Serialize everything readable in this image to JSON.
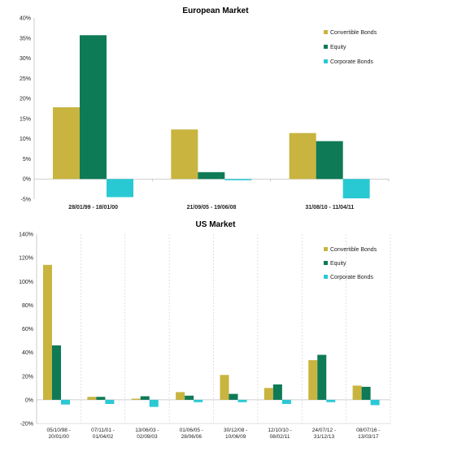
{
  "colors": {
    "convertible": "#C8B43F",
    "equity": "#0E7A56",
    "corporate": "#29C9D4",
    "grid": "#D9D9D9",
    "axis": "#BFBFBF"
  },
  "chart_data": [
    {
      "type": "bar",
      "title": "European Market",
      "categories": [
        "28/01/99 - 18/01/00",
        "21/09/05 - 19/06/08",
        "31/08/10 - 11/04/11"
      ],
      "series": [
        {
          "name": "Convertible Bonds",
          "values": [
            17.8,
            12.3,
            11.4
          ]
        },
        {
          "name": "Equity",
          "values": [
            35.7,
            1.7,
            9.4
          ]
        },
        {
          "name": "Corporate Bonds",
          "values": [
            -4.5,
            -0.3,
            -4.8
          ]
        }
      ],
      "yticks": [
        "40%",
        "35%",
        "30%",
        "25%",
        "20%",
        "15%",
        "10%",
        "5%",
        "0%",
        "-5%"
      ],
      "ylim": [
        -5,
        40
      ],
      "grid": false,
      "legend": "top-right"
    },
    {
      "type": "bar",
      "title": "US Market",
      "categories": [
        [
          "05/10/98 -",
          "20/01/00"
        ],
        [
          "07/11/01 -",
          "01/04/02"
        ],
        [
          "13/06/03 -",
          "02/09/03"
        ],
        [
          "01/06/05 -",
          "28/06/06"
        ],
        [
          "30/12/08 -",
          "10/06/09"
        ],
        [
          "12/10/10 -",
          "08/02/11"
        ],
        [
          "24/07/12 -",
          "31/12/13"
        ],
        [
          "08/07/16 -",
          "13/03/17"
        ]
      ],
      "series": [
        {
          "name": "Convertible Bonds",
          "values": [
            114,
            2.5,
            1.0,
            6.5,
            21,
            10,
            33.5,
            12
          ]
        },
        {
          "name": "Equity",
          "values": [
            46,
            2.5,
            3.0,
            3.5,
            5.0,
            13,
            38,
            11
          ]
        },
        {
          "name": "Corporate Bonds",
          "values": [
            -4,
            -3.5,
            -6,
            -2,
            -2,
            -3.5,
            -2,
            -4.5
          ]
        }
      ],
      "yticks": [
        "140%",
        "120%",
        "100%",
        "80%",
        "60%",
        "40%",
        "20%",
        "0%",
        "-20%"
      ],
      "ylim": [
        -20,
        140
      ],
      "grid": "vertical dashed separators",
      "legend": "top-right"
    }
  ]
}
